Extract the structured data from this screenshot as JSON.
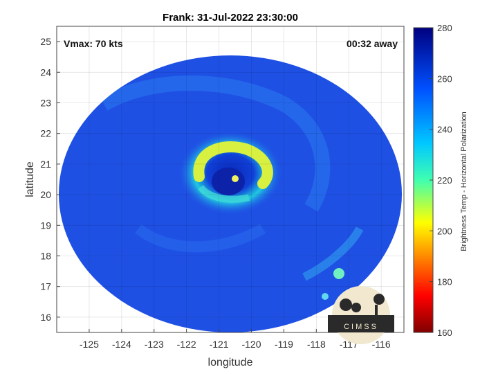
{
  "map": {
    "title": "Frank: 31-Jul-2022 23:30:00",
    "xlabel": "longitude",
    "ylabel": "latitude",
    "annotation_left": "Vmax: 70 kts",
    "annotation_right": "00:32 away",
    "x_ticks": [
      "-125",
      "-124",
      "-123",
      "-122",
      "-121",
      "-120",
      "-119",
      "-118",
      "-117",
      "-116"
    ],
    "y_ticks": [
      "25",
      "24",
      "23",
      "22",
      "21",
      "20",
      "19",
      "18",
      "17",
      "16"
    ],
    "xlim": [
      -126,
      -115.3
    ],
    "ylim": [
      15.5,
      25.5
    ],
    "grid": true,
    "storm_center": {
      "lon": -120.5,
      "lat": 20.5
    },
    "logo_text": "CIMSS"
  },
  "colorbar": {
    "label": "Brightness Temp - Horizontal Polarization",
    "ticks": [
      "280",
      "260",
      "240",
      "220",
      "200",
      "180",
      "160"
    ],
    "range": [
      160,
      280
    ],
    "colormap": "jet"
  },
  "colors": {
    "background_blue": "#1a4ee0",
    "deep_blue": "#0a1fa8",
    "cyan": "#20d0f0",
    "yellow": "#e8f040"
  }
}
